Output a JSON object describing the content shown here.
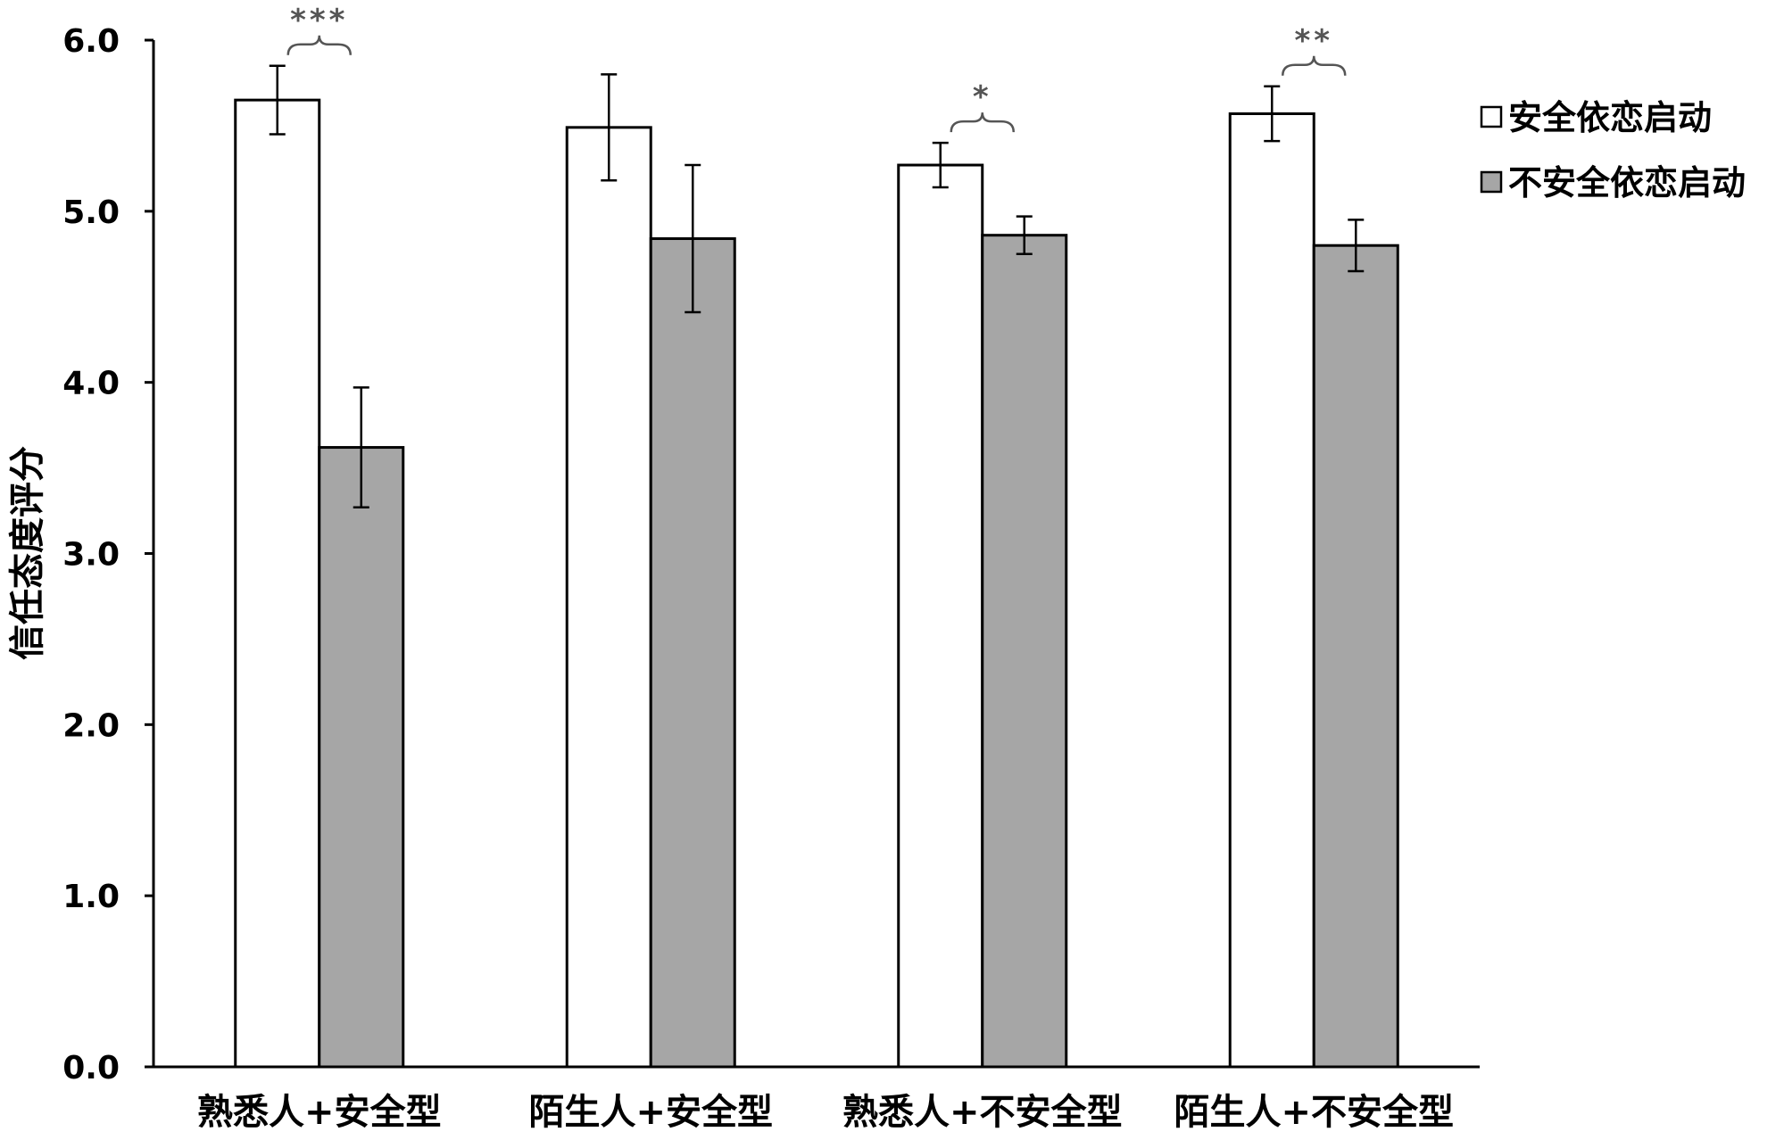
{
  "chart_data": {
    "type": "bar",
    "title": "",
    "xlabel": "",
    "ylabel": "信任态度评分",
    "ylim": [
      0,
      6
    ],
    "yticks": [
      "0.0",
      "1.0",
      "2.0",
      "3.0",
      "4.0",
      "5.0",
      "6.0"
    ],
    "ytick_values": [
      0,
      1,
      2,
      3,
      4,
      5,
      6
    ],
    "categories": [
      "熟悉人+安全型",
      "陌生人+安全型",
      "熟悉人+不安全型",
      "陌生人+不安全型"
    ],
    "series": [
      {
        "name": "安全依恋启动",
        "color": "#ffffff",
        "values": [
          5.65,
          5.49,
          5.27,
          5.57
        ],
        "error": [
          0.2,
          0.31,
          0.13,
          0.16
        ]
      },
      {
        "name": "不安全依恋启动",
        "color": "#a6a6a6",
        "values": [
          3.62,
          4.84,
          4.86,
          4.8
        ],
        "error": [
          0.35,
          0.43,
          0.11,
          0.15
        ]
      }
    ],
    "significance": [
      {
        "category_index": 0,
        "label": "***"
      },
      {
        "category_index": 2,
        "label": "*"
      },
      {
        "category_index": 3,
        "label": "**"
      }
    ],
    "legend_position": "top-right",
    "grid": false
  }
}
